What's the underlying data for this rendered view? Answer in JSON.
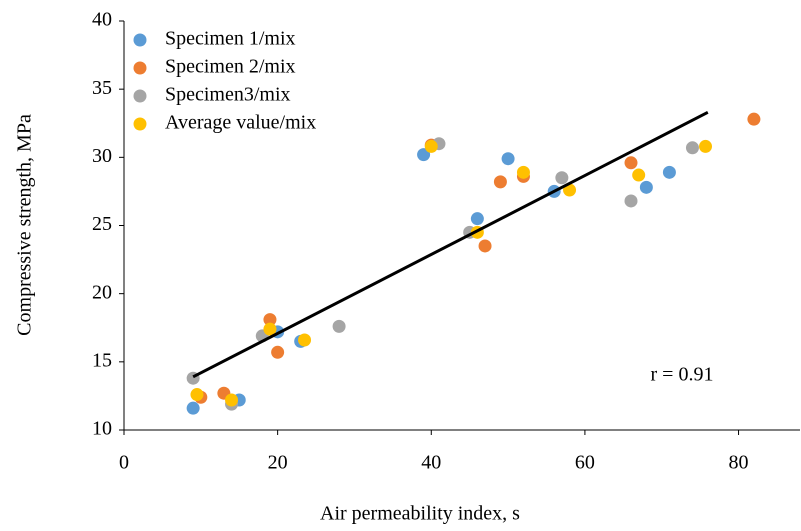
{
  "chart_data": {
    "type": "scatter",
    "xlabel": "Air permeability index, s",
    "ylabel": "Compressive strength, MPa",
    "annotation": "r = 0.91",
    "xlim": [
      0,
      88
    ],
    "ylim": [
      10,
      40
    ],
    "xticks": [
      0,
      20,
      40,
      60,
      80
    ],
    "yticks": [
      10,
      15,
      20,
      25,
      30,
      35,
      40
    ],
    "grid": false,
    "legend": "upper left",
    "series": [
      {
        "name": "Specimen 1/mix",
        "color": "#5b9bd5",
        "x": [
          9,
          15,
          20,
          23,
          39,
          46,
          50,
          56,
          68,
          71
        ],
        "y": [
          11.6,
          12.2,
          17.2,
          16.5,
          30.2,
          25.5,
          29.9,
          27.5,
          27.8,
          28.9
        ]
      },
      {
        "name": "Specimen 2/mix",
        "color": "#ed7d31",
        "x": [
          10,
          13,
          19,
          20,
          40,
          47,
          49,
          52,
          66,
          82
        ],
        "y": [
          12.4,
          12.7,
          18.1,
          15.7,
          30.9,
          23.5,
          28.2,
          28.6,
          29.6,
          32.8
        ]
      },
      {
        "name": "Specimen3/mix",
        "color": "#a5a5a5",
        "x": [
          9,
          14,
          18,
          28,
          41,
          45,
          57,
          66,
          74
        ],
        "y": [
          13.8,
          11.9,
          16.9,
          17.6,
          31,
          24.5,
          28.5,
          26.8,
          30.7
        ]
      },
      {
        "name": "Average value/mix",
        "color": "#ffc000",
        "x": [
          9.5,
          14,
          19,
          23.5,
          40,
          46,
          52,
          58,
          67,
          75.7
        ],
        "y": [
          12.6,
          12.2,
          17.4,
          16.6,
          30.8,
          24.5,
          28.9,
          27.6,
          28.7,
          30.8
        ]
      }
    ],
    "trendline": {
      "color": "#000000",
      "x": [
        9,
        76
      ],
      "y": [
        13.9,
        33.3
      ]
    }
  }
}
